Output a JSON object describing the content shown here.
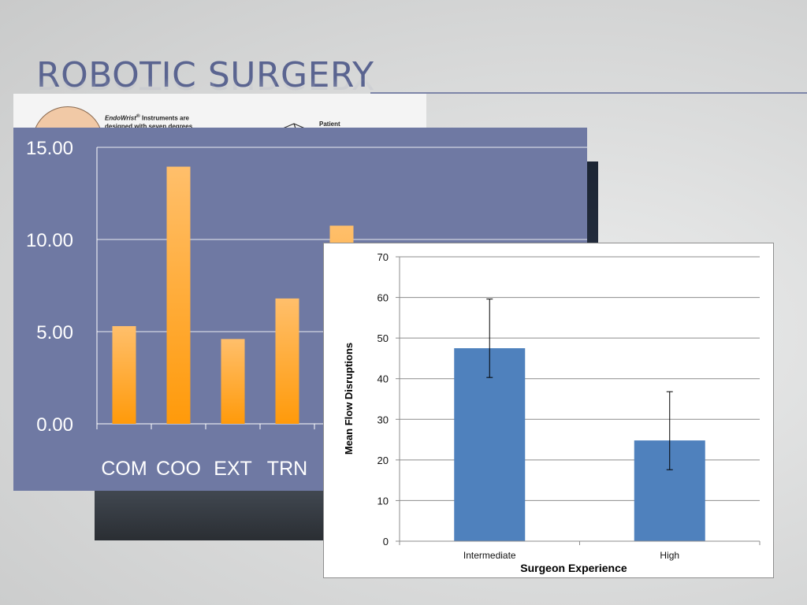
{
  "slide": {
    "title": "ROBOTIC SURGERY"
  },
  "instrument_panel": {
    "text_brand": "EndoWrist",
    "text_mark": "®",
    "text_line1_rest": " Instruments are",
    "text_line2": "designed with seven degrees",
    "patient_label": "Patient"
  },
  "chart_data": [
    {
      "type": "bar",
      "categories": [
        "COM",
        "COO",
        "EXT",
        "TRN"
      ],
      "values": [
        5.3,
        13.95,
        4.6,
        6.8
      ],
      "hidden_bar_value": 10.75,
      "ylim": [
        0,
        15
      ],
      "y_ticks": [
        "0.00",
        "5.00",
        "10.00",
        "15.00"
      ],
      "grid": true,
      "bar_color": "#ffa726",
      "background_color": "#6f79a3"
    },
    {
      "type": "bar",
      "categories": [
        "Intermediate",
        "High"
      ],
      "values": [
        47.5,
        24.8
      ],
      "error_low": [
        40.3,
        17.6
      ],
      "error_high": [
        59.6,
        36.8
      ],
      "xlabel": "Surgeon Experience",
      "ylabel": "Mean Flow Disruptions",
      "ylim": [
        0,
        70
      ],
      "y_ticks": [
        "0",
        "10",
        "20",
        "30",
        "40",
        "50",
        "60",
        "70"
      ],
      "grid": true,
      "bar_color": "#4f81bd"
    }
  ]
}
